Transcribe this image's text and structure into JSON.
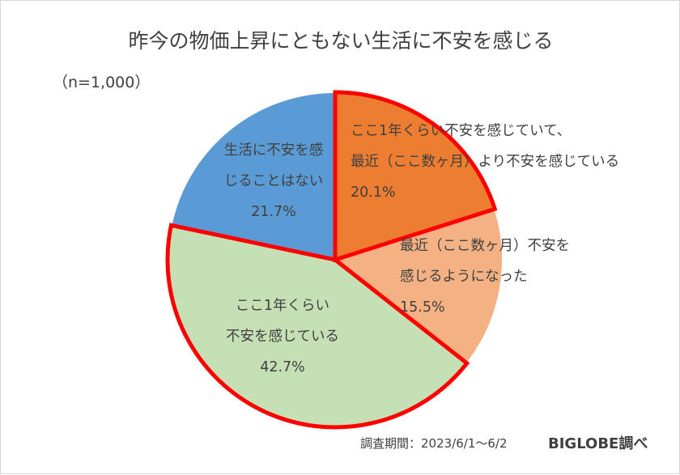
{
  "title": "昨今の物価上昇にともない生活に不安を感じる",
  "sample": "（n=1,000）",
  "footer": {
    "source": "調査期間：2023/6/1～6/2",
    "brand": "BIGLOBE調べ"
  },
  "chart_data": {
    "type": "pie",
    "start": "12 o'clock",
    "direction": "clockwise",
    "legend": "none",
    "slices": [
      {
        "label_lines": [
          "ここ1年くらい不安を感じていて、",
          "最近（ここ数ヶ月）より不安を感じている"
        ],
        "value": 20.1,
        "value_label": "20.1%",
        "color": "#ed7d31",
        "highlight": true
      },
      {
        "label_lines": [
          "最近（ここ数ヶ月）不安を",
          "感じるようになった"
        ],
        "value": 15.5,
        "value_label": "15.5%",
        "color": "#f4b183",
        "highlight": false
      },
      {
        "label_lines": [
          "ここ1年くらい",
          "不安を感じている"
        ],
        "value": 42.7,
        "value_label": "42.7%",
        "color": "#c5e0b4",
        "highlight": true
      },
      {
        "label_lines": [
          "生活に不安を感",
          "じることはない"
        ],
        "value": 21.7,
        "value_label": "21.7%",
        "color": "#5b9bd5",
        "highlight": false
      }
    ],
    "highlight_color": "#ff0000"
  }
}
